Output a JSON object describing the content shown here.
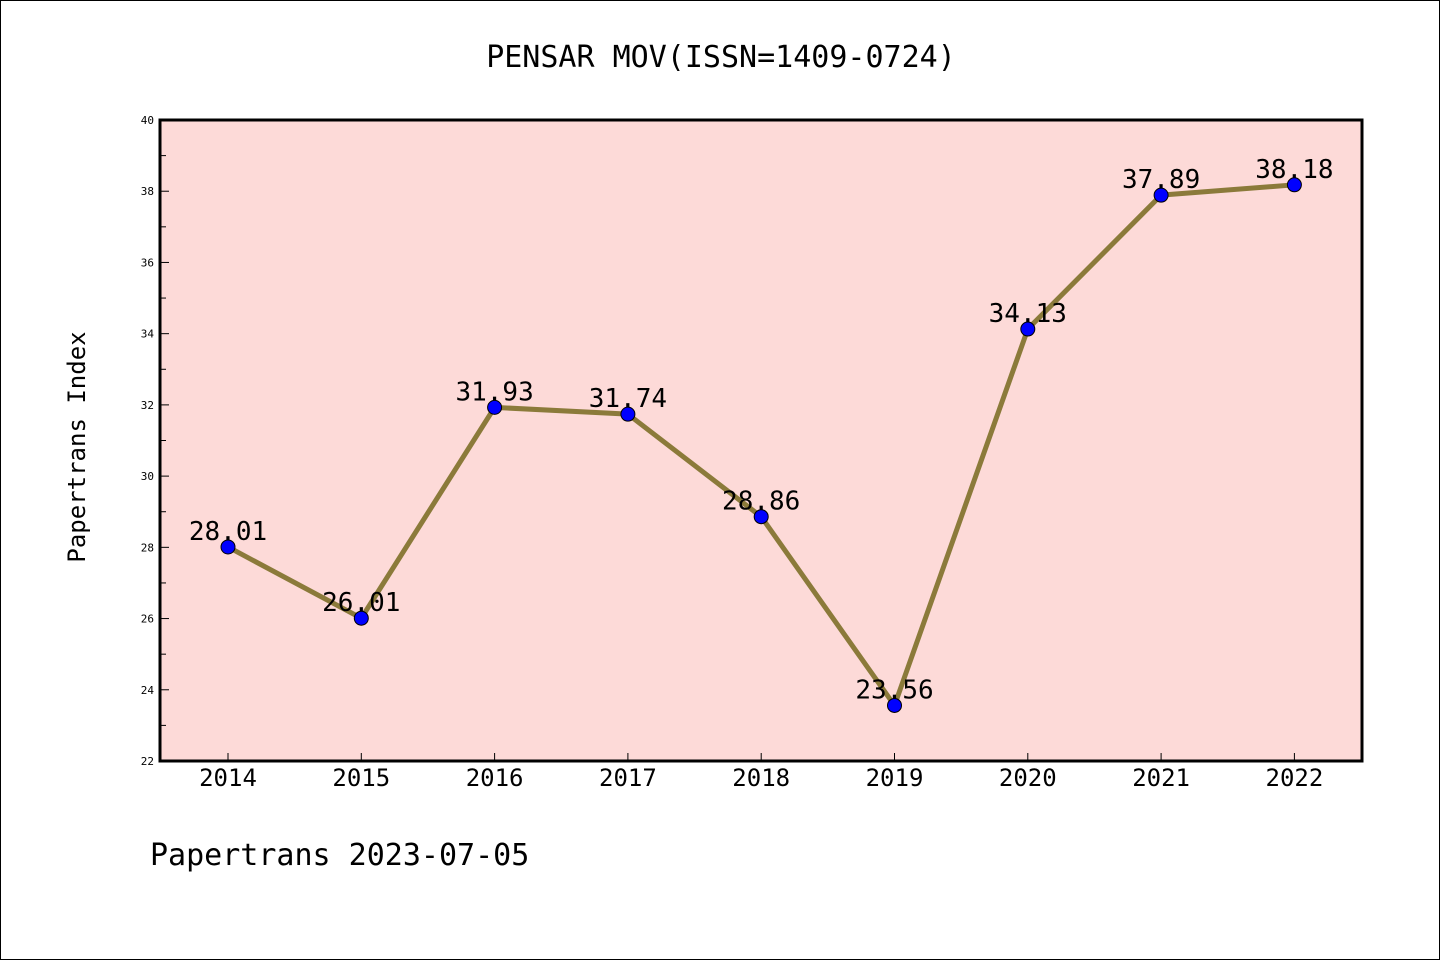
{
  "chart_data": {
    "type": "line",
    "title": "PENSAR MOV(ISSN=1409-0724)",
    "xlabel": "",
    "ylabel": "Papertrans Index",
    "categories": [
      "2014",
      "2015",
      "2016",
      "2017",
      "2018",
      "2019",
      "2020",
      "2021",
      "2022"
    ],
    "series": [
      {
        "values": [
          28.01,
          26.01,
          31.93,
          31.74,
          28.86,
          23.56,
          34.13,
          37.89,
          38.18
        ],
        "labels": [
          "28.01",
          "26.01",
          "31.93",
          "31.74",
          "28.86",
          "23.56",
          "34.13",
          "37.89",
          "38.18"
        ]
      }
    ],
    "ylim": [
      22,
      40
    ],
    "yticks": [
      "22",
      "24",
      "26",
      "28",
      "30",
      "32",
      "34",
      "36",
      "38",
      "40"
    ],
    "grid": false,
    "legend": "none",
    "colors": {
      "plot_background": "#fddad8",
      "line": "#8b7a3a",
      "marker": "#0000ff",
      "axes": "#000000"
    }
  },
  "footer": "Papertrans 2023-07-05"
}
